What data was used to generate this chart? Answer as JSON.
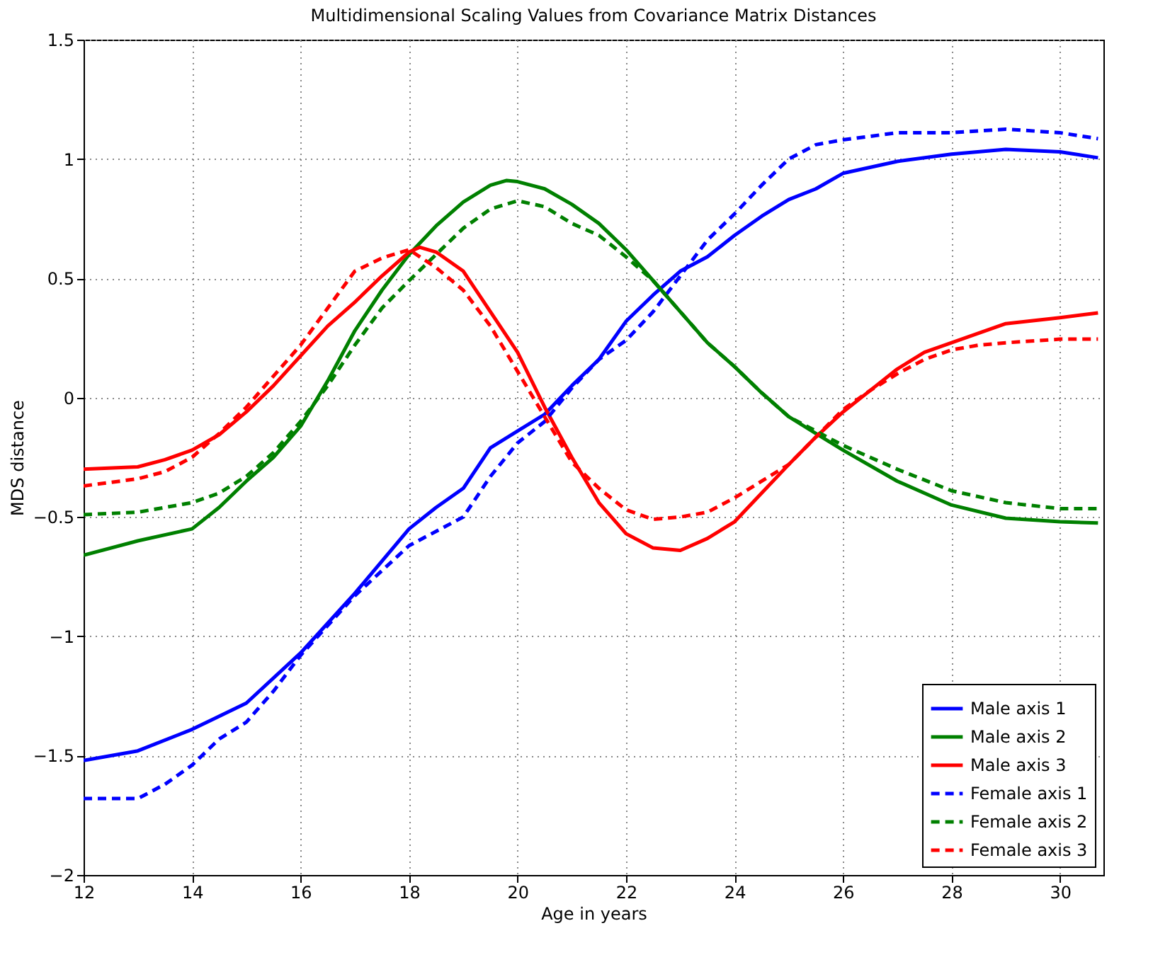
{
  "chart_data": {
    "type": "line",
    "title": "Multidimensional Scaling Values from Covariance Matrix Distances",
    "xlabel": "Age in years",
    "ylabel": "MDS distance",
    "xlim": [
      12,
      30.8
    ],
    "xticks": [
      12,
      14,
      16,
      18,
      20,
      22,
      24,
      26,
      28,
      30
    ],
    "ylim": [
      -2,
      1.5
    ],
    "yticks": [
      -2,
      -1.5,
      -1,
      -0.5,
      0,
      0.5,
      1,
      1.5
    ],
    "grid": true,
    "legend": "bottom right",
    "marker": "none",
    "series": [
      {
        "name": "Male axis 1",
        "color": "#0000ff",
        "line_style": "solid",
        "x": [
          12,
          13,
          14,
          15,
          16,
          17,
          18,
          18.5,
          19,
          19.5,
          20,
          20.5,
          21,
          21.5,
          22,
          22.5,
          23,
          23.5,
          24,
          24.5,
          25,
          25.5,
          26,
          27,
          28,
          29,
          30,
          30.7
        ],
        "values": [
          -1.52,
          -1.48,
          -1.39,
          -1.28,
          -1.07,
          -0.82,
          -0.55,
          -0.46,
          -0.38,
          -0.21,
          -0.14,
          -0.07,
          0.05,
          0.16,
          0.32,
          0.43,
          0.53,
          0.59,
          0.68,
          0.76,
          0.83,
          0.875,
          0.94,
          0.99,
          1.02,
          1.04,
          1.03,
          1.005
        ]
      },
      {
        "name": "Male axis 2",
        "color": "#008000",
        "line_style": "solid",
        "x": [
          12,
          13,
          14,
          14.5,
          15,
          15.5,
          16,
          16.5,
          17,
          17.5,
          18,
          18.5,
          19,
          19.5,
          19.8,
          20,
          20.5,
          21,
          21.5,
          22,
          22.5,
          23,
          23.5,
          24,
          24.5,
          25,
          25.5,
          26,
          27,
          28,
          29,
          30,
          30.7
        ],
        "values": [
          -0.66,
          -0.6,
          -0.55,
          -0.46,
          -0.35,
          -0.25,
          -0.12,
          0.07,
          0.28,
          0.45,
          0.6,
          0.72,
          0.82,
          0.89,
          0.91,
          0.905,
          0.875,
          0.81,
          0.73,
          0.62,
          0.49,
          0.36,
          0.23,
          0.13,
          0.02,
          -0.08,
          -0.15,
          -0.22,
          -0.35,
          -0.45,
          -0.505,
          -0.52,
          -0.525
        ]
      },
      {
        "name": "Male axis 3",
        "color": "#ff0000",
        "line_style": "solid",
        "x": [
          12,
          13,
          13.5,
          14,
          14.5,
          15,
          15.5,
          16,
          16.5,
          17,
          17.5,
          18,
          18.2,
          18.5,
          19,
          19.5,
          20,
          20.5,
          21,
          21.5,
          22,
          22.5,
          23,
          23.5,
          24,
          24.5,
          25,
          25.5,
          26,
          26.5,
          27,
          27.5,
          28,
          28.5,
          29,
          30,
          30.7
        ],
        "values": [
          -0.3,
          -0.29,
          -0.26,
          -0.22,
          -0.155,
          -0.06,
          0.05,
          0.175,
          0.3,
          0.4,
          0.51,
          0.61,
          0.63,
          0.61,
          0.53,
          0.36,
          0.19,
          -0.04,
          -0.25,
          -0.44,
          -0.57,
          -0.63,
          -0.64,
          -0.59,
          -0.52,
          -0.4,
          -0.28,
          -0.165,
          -0.06,
          0.03,
          0.12,
          0.19,
          0.23,
          0.27,
          0.31,
          0.335,
          0.355
        ]
      },
      {
        "name": "Female axis 1",
        "color": "#0000ff",
        "line_style": "dashed",
        "x": [
          12,
          13,
          13.5,
          14,
          14.5,
          15,
          15.5,
          16,
          17,
          18,
          19,
          19.5,
          20,
          20.5,
          21,
          21.5,
          22,
          22.5,
          23,
          23.5,
          24,
          24.5,
          25,
          25.5,
          26,
          27,
          28,
          29,
          30,
          30.7
        ],
        "values": [
          -1.68,
          -1.68,
          -1.62,
          -1.54,
          -1.43,
          -1.36,
          -1.23,
          -1.08,
          -0.83,
          -0.62,
          -0.5,
          -0.33,
          -0.19,
          -0.1,
          0.04,
          0.16,
          0.24,
          0.36,
          0.51,
          0.66,
          0.77,
          0.89,
          1.0,
          1.06,
          1.08,
          1.11,
          1.11,
          1.125,
          1.11,
          1.085
        ]
      },
      {
        "name": "Female axis 2",
        "color": "#008000",
        "line_style": "dashed",
        "x": [
          12,
          13,
          14,
          14.5,
          15,
          15.5,
          16,
          16.5,
          17,
          17.5,
          18,
          18.5,
          19,
          19.5,
          20,
          20.5,
          21,
          21.5,
          22,
          22.5,
          23,
          23.5,
          24,
          24.5,
          25,
          25.5,
          26,
          27,
          28,
          29,
          30,
          30.7
        ],
        "values": [
          -0.49,
          -0.48,
          -0.44,
          -0.4,
          -0.33,
          -0.23,
          -0.1,
          0.05,
          0.22,
          0.375,
          0.49,
          0.6,
          0.71,
          0.79,
          0.825,
          0.8,
          0.73,
          0.68,
          0.59,
          0.49,
          0.36,
          0.23,
          0.13,
          0.02,
          -0.08,
          -0.14,
          -0.2,
          -0.3,
          -0.39,
          -0.44,
          -0.465,
          -0.465
        ]
      },
      {
        "name": "Female axis 3",
        "color": "#ff0000",
        "line_style": "dashed",
        "x": [
          12,
          13,
          13.5,
          14,
          14.5,
          15,
          15.5,
          16,
          16.5,
          17,
          17.5,
          18,
          18.5,
          19,
          19.5,
          20,
          20.5,
          21,
          21.5,
          22,
          22.5,
          23,
          23.5,
          24,
          24.5,
          25,
          25.5,
          26,
          26.5,
          27,
          27.5,
          28,
          28.5,
          29,
          30,
          30.7
        ],
        "values": [
          -0.37,
          -0.34,
          -0.31,
          -0.25,
          -0.15,
          -0.04,
          0.09,
          0.22,
          0.375,
          0.53,
          0.585,
          0.62,
          0.545,
          0.45,
          0.3,
          0.11,
          -0.08,
          -0.27,
          -0.38,
          -0.47,
          -0.51,
          -0.5,
          -0.48,
          -0.42,
          -0.35,
          -0.28,
          -0.165,
          -0.05,
          0.03,
          0.1,
          0.16,
          0.2,
          0.22,
          0.23,
          0.245,
          0.245
        ]
      }
    ]
  }
}
